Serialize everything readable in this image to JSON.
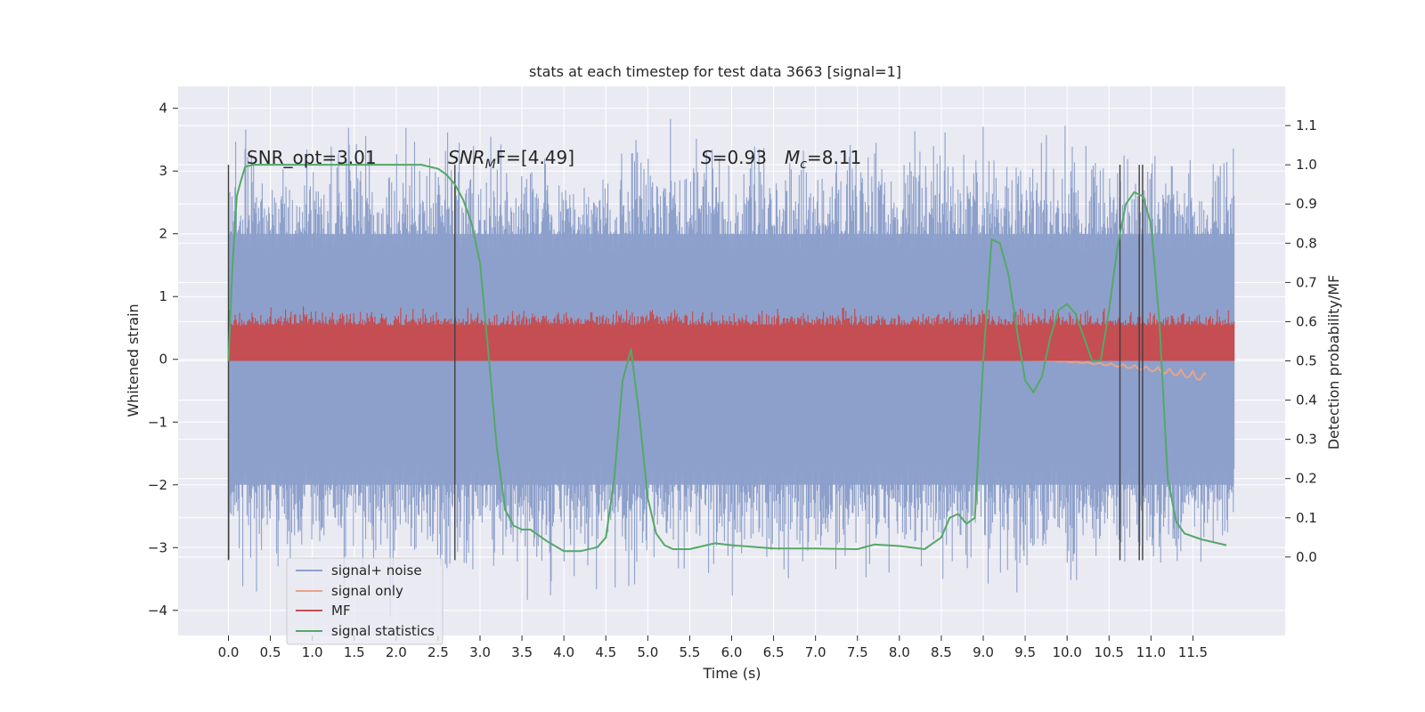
{
  "chart_data": {
    "type": "line",
    "title": "stats at each timestep for test data 3663 [signal=1]",
    "xlabel": "Time (s)",
    "ylabel_left": "Whitened strain",
    "ylabel_right": "Detection probability/MF",
    "xlim": [
      -0.6,
      12.6
    ],
    "ylim_left": [
      -4.4,
      4.35
    ],
    "ylim_right": [
      -0.2,
      1.2
    ],
    "x_ticks": [
      "0.0",
      "0.5",
      "1.0",
      "1.5",
      "2.0",
      "2.5",
      "3.0",
      "3.5",
      "4.0",
      "4.5",
      "5.0",
      "5.5",
      "6.0",
      "6.5",
      "7.0",
      "7.5",
      "8.0",
      "8.5",
      "9.0",
      "9.5",
      "10.0",
      "10.5",
      "11.0",
      "11.5"
    ],
    "y_ticks_left": [
      "4",
      "3",
      "2",
      "1",
      "0",
      "−1",
      "−2",
      "−3",
      "−4"
    ],
    "y_ticks_right": [
      "1.1",
      "1.0",
      "0.9",
      "0.8",
      "0.7",
      "0.6",
      "0.5",
      "0.4",
      "0.3",
      "0.2",
      "0.1",
      "0.0"
    ],
    "grid": true,
    "legend_position": "lower-left",
    "annotations": {
      "snr_opt": "SNR_opt=3.01",
      "snr_mf_base": "SNR",
      "snr_mf_sub": "M",
      "snr_mf_rest": "F=[4.49]",
      "s_label": "S",
      "s_value": "=0.93",
      "mc_label": "M",
      "mc_sub": "c",
      "mc_value": "=8.11"
    },
    "series": [
      {
        "name": "signal+ noise",
        "color": "#8da0cb",
        "axis": "left",
        "kind": "noise",
        "x_range": [
          0.0,
          11.99
        ],
        "envelope": [
          -2.0,
          2.0
        ]
      },
      {
        "name": "signal only",
        "color": "#e8a58b",
        "axis": "left",
        "kind": "chirp",
        "x_range": [
          9.0,
          11.65
        ],
        "peak": -0.35
      },
      {
        "name": "MF",
        "color": "#c44e52",
        "axis": "right",
        "kind": "mf",
        "x_range": [
          0.0,
          11.99
        ],
        "range": [
          0.5,
          0.6
        ]
      },
      {
        "name": "signal statistics",
        "color": "#55a868",
        "axis": "right",
        "kind": "line",
        "x": [
          0.0,
          0.05,
          0.1,
          0.15,
          0.2,
          0.3,
          0.5,
          1.0,
          1.5,
          2.0,
          2.3,
          2.5,
          2.6,
          2.7,
          2.8,
          2.9,
          3.0,
          3.1,
          3.2,
          3.3,
          3.4,
          3.5,
          3.6,
          3.8,
          4.0,
          4.2,
          4.4,
          4.5,
          4.6,
          4.7,
          4.8,
          4.9,
          5.0,
          5.1,
          5.2,
          5.3,
          5.5,
          5.8,
          6.0,
          6.5,
          7.0,
          7.5,
          7.7,
          8.0,
          8.3,
          8.5,
          8.6,
          8.7,
          8.8,
          8.9,
          9.0,
          9.1,
          9.2,
          9.3,
          9.4,
          9.5,
          9.6,
          9.7,
          9.8,
          9.9,
          10.0,
          10.1,
          10.2,
          10.3,
          10.4,
          10.5,
          10.6,
          10.7,
          10.8,
          10.9,
          11.0,
          11.1,
          11.2,
          11.3,
          11.4,
          11.6,
          11.9
        ],
        "y": [
          0.5,
          0.75,
          0.92,
          0.96,
          0.995,
          1.0,
          1.0,
          1.0,
          1.0,
          1.0,
          1.0,
          0.99,
          0.975,
          0.95,
          0.91,
          0.85,
          0.75,
          0.52,
          0.28,
          0.12,
          0.08,
          0.07,
          0.07,
          0.04,
          0.015,
          0.015,
          0.025,
          0.05,
          0.2,
          0.45,
          0.53,
          0.36,
          0.15,
          0.06,
          0.03,
          0.02,
          0.02,
          0.035,
          0.03,
          0.022,
          0.022,
          0.02,
          0.032,
          0.028,
          0.02,
          0.05,
          0.1,
          0.11,
          0.085,
          0.1,
          0.5,
          0.81,
          0.8,
          0.72,
          0.58,
          0.45,
          0.42,
          0.46,
          0.56,
          0.63,
          0.645,
          0.62,
          0.56,
          0.5,
          0.5,
          0.63,
          0.79,
          0.9,
          0.93,
          0.92,
          0.85,
          0.6,
          0.2,
          0.09,
          0.06,
          0.045,
          0.03
        ]
      }
    ],
    "vertical_markers": [
      0.0,
      2.7,
      10.63,
      10.86,
      10.9
    ],
    "vertical_markers_range_left": [
      -3.2,
      3.1
    ]
  }
}
